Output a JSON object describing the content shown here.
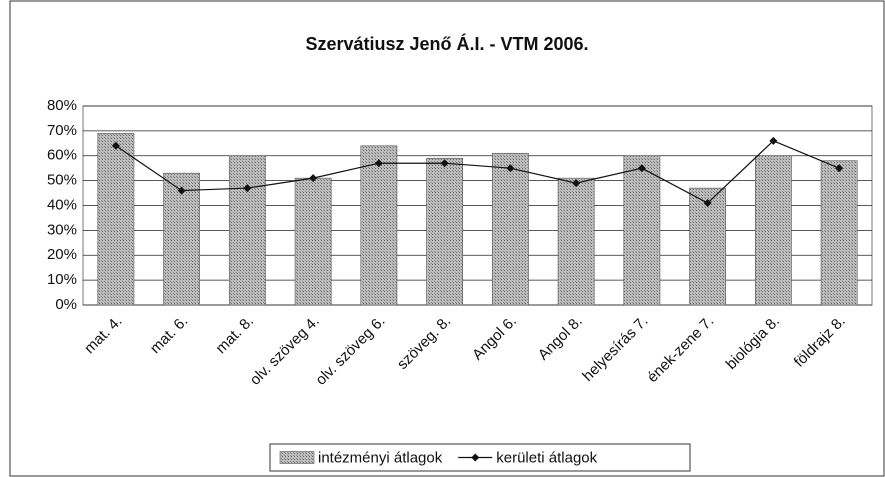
{
  "chart_data": {
    "type": "bar",
    "title": "Szervátiusz Jenő Á.I. - VTM 2006.",
    "categories": [
      "mat. 4.",
      "mat. 6.",
      "mat. 8.",
      "olv. szöveg 4.",
      "olv. szöveg 6.",
      "szöveg. 8.",
      "Angol 6.",
      "Angol 8.",
      "helyesírás 7.",
      "ének-zene 7.",
      "biológia 8.",
      "földrajz 8."
    ],
    "series": [
      {
        "name": "intézményi átlagok",
        "type": "bar",
        "color": "#a6a6a6",
        "values": [
          69,
          53,
          60,
          51,
          64,
          59,
          61,
          51,
          60,
          47,
          60,
          58
        ]
      },
      {
        "name": "kerületi átlagok",
        "type": "line",
        "color": "#111111",
        "values": [
          64,
          46,
          47,
          51,
          57,
          57,
          55,
          49,
          55,
          41,
          66,
          55
        ]
      }
    ],
    "ylim": [
      0,
      80
    ],
    "yticks": [
      {
        "value": 0,
        "label": "0%"
      },
      {
        "value": 10,
        "label": "10%"
      },
      {
        "value": 20,
        "label": "20%"
      },
      {
        "value": 30,
        "label": "30%"
      },
      {
        "value": 40,
        "label": "40%"
      },
      {
        "value": 50,
        "label": "50%"
      },
      {
        "value": 60,
        "label": "60%"
      },
      {
        "value": 70,
        "label": "70%"
      },
      {
        "value": 80,
        "label": "80%"
      }
    ],
    "grid": true,
    "legend": "bottom"
  }
}
